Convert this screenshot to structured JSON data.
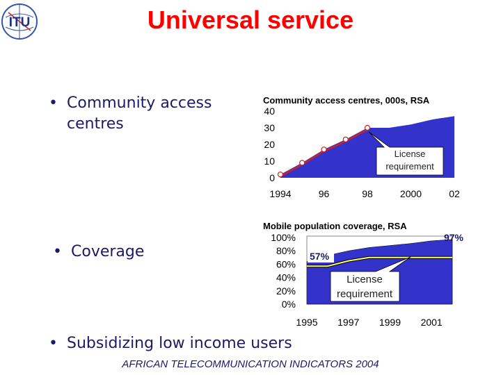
{
  "page": {
    "title": "Universal service",
    "footer": "AFRICAN TELECOMMUNICATION INDICATORS 2004",
    "logo_text": "ITU"
  },
  "bullets": [
    {
      "marker": "•",
      "text": "Community access\ncentres"
    },
    {
      "marker": "•",
      "text": "Coverage"
    },
    {
      "marker": "•",
      "text": "Subsidizing low income users"
    }
  ],
  "colors": {
    "title": "#ff0000",
    "area": "#3333cc",
    "line": "#cc2222",
    "coverage_line": "#ffff66",
    "text": "#1a1a66"
  },
  "chart_data": [
    {
      "type": "area",
      "title": "Community access centres, 000s, RSA",
      "x_ticks": [
        "1994",
        "96",
        "98",
        "2000",
        "02"
      ],
      "y_ticks": [
        "40",
        "30",
        "20",
        "10",
        "0"
      ],
      "ylim": [
        0,
        40
      ],
      "x_range": [
        1994,
        2002
      ],
      "series": [
        {
          "name": "",
          "x": [
            1994,
            1995,
            1996,
            1997,
            1998,
            1999,
            2000,
            2001,
            2002
          ],
          "values": [
            2,
            9,
            17,
            23,
            30,
            30,
            32,
            35,
            37
          ]
        },
        {
          "name": "License requirement",
          "x": [
            1994,
            1995,
            1996,
            1997,
            1998
          ],
          "values": [
            1,
            8,
            16,
            22,
            29
          ]
        }
      ],
      "markers": {
        "x": [
          1994,
          1995,
          1996,
          1997,
          1998
        ],
        "values": [
          2,
          9,
          17,
          23,
          30
        ]
      },
      "annotations": [
        {
          "text": "License\nrequirement"
        }
      ]
    },
    {
      "type": "area",
      "title": "Mobile population coverage, RSA",
      "x_ticks": [
        "1995",
        "1997",
        "1999",
        "2001"
      ],
      "y_ticks": [
        "100%",
        "80%",
        "60%",
        "40%",
        "20%",
        "0%"
      ],
      "ylim": [
        0,
        100
      ],
      "x_range": [
        1995,
        2002
      ],
      "series": [
        {
          "name": "",
          "x": [
            1995,
            1996,
            1997,
            1998,
            1999,
            2000,
            2001,
            2002
          ],
          "values": [
            64,
            73,
            80,
            85,
            88,
            91,
            95,
            97
          ]
        },
        {
          "name": "License requirement",
          "x": [
            1995,
            1996,
            1997,
            1998,
            1999,
            2000,
            2001,
            2002
          ],
          "values": [
            57,
            57,
            65,
            70,
            70,
            70,
            70,
            70
          ]
        }
      ],
      "annotations": [
        {
          "text": "57%"
        },
        {
          "text": "97%"
        },
        {
          "text": "License\nrequirement"
        }
      ]
    }
  ]
}
